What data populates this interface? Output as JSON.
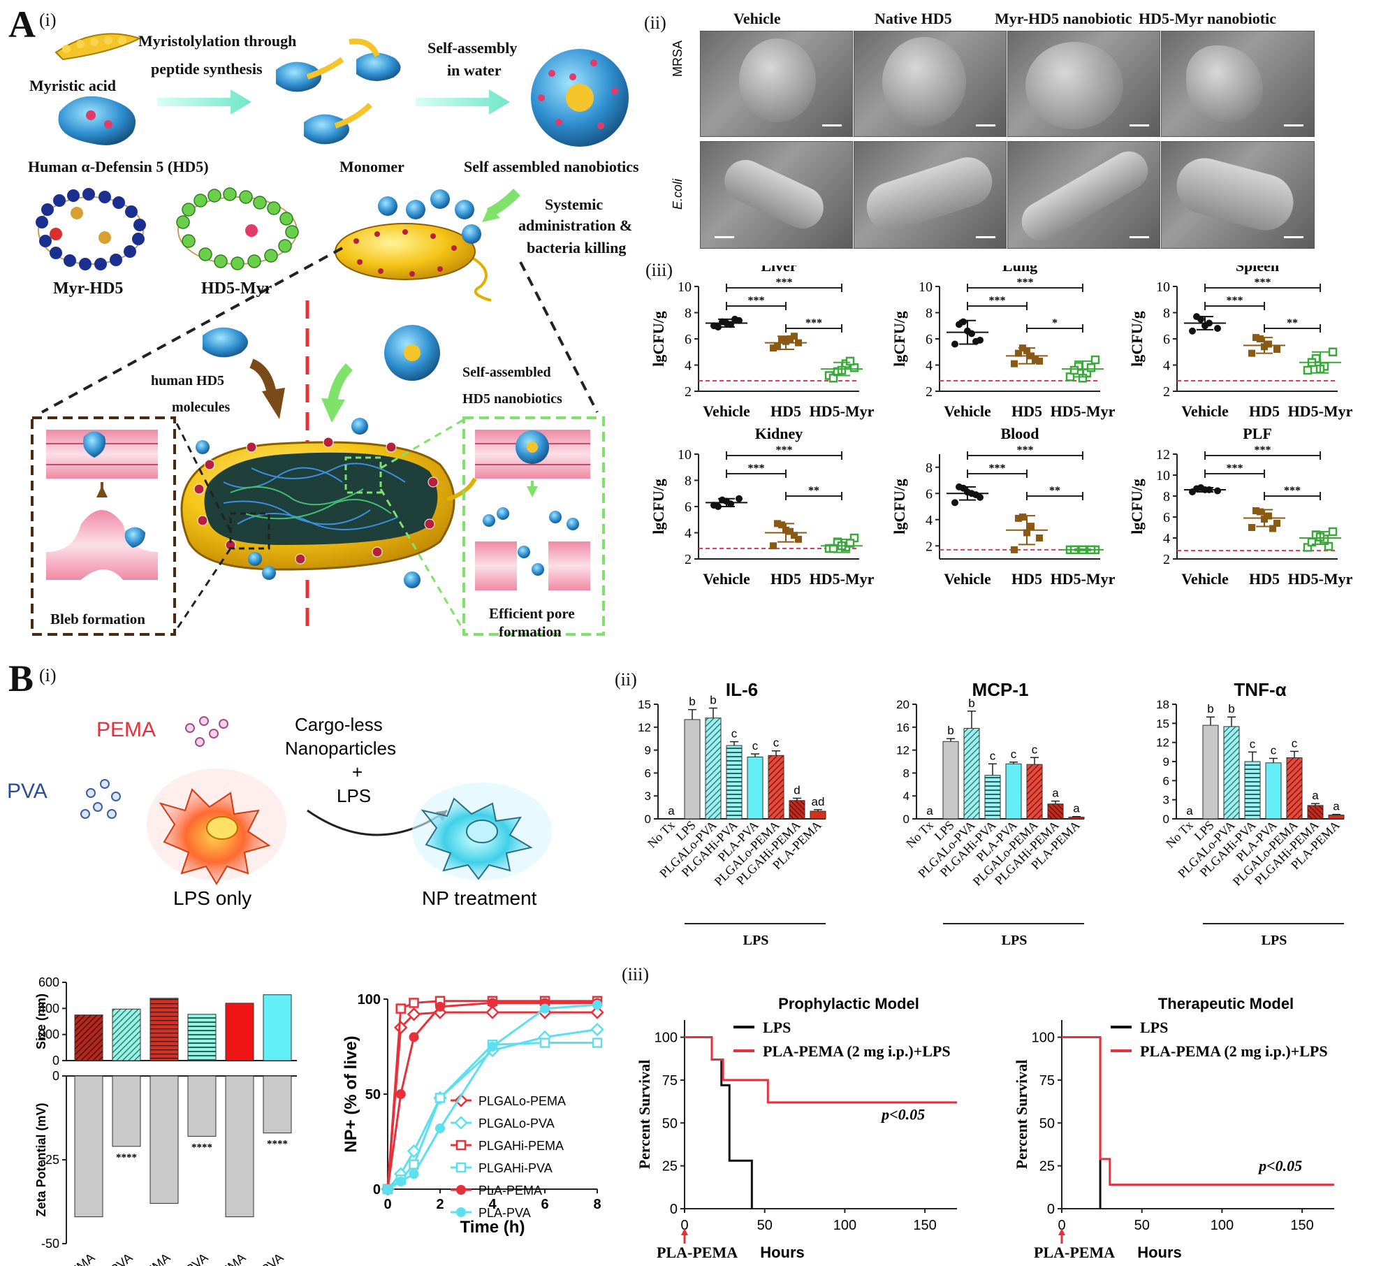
{
  "panelA": {
    "label": "A",
    "i": {
      "sub": "(i)",
      "myristic": "Myristic acid",
      "synth1": "Myristolylation through",
      "synth2": "peptide synthesis",
      "selfasm1": "Self-assembly",
      "selfasm2": "in water",
      "hd5": "Human α-Defensin 5 (HD5)",
      "monomer": "Monomer",
      "nanobiotics": "Self assembled nanobiotics",
      "systemic1": "Systemic",
      "systemic2": "administration &",
      "systemic3": "bacteria killing",
      "myrhd5": "Myr-HD5",
      "hd5myr": "HD5-Myr",
      "humanhd5_1": "human HD5",
      "humanhd5_2": "molecules",
      "selfassembled1": "Self-assembled",
      "selfassembled2": "HD5 nanobiotics",
      "bleb": "Bleb formation",
      "pore1": "Efficient pore",
      "pore2": "formation"
    },
    "ii": {
      "sub": "(ii)",
      "cols": [
        "Vehicle",
        "Native HD5",
        "Myr-HD5 nanobiotic",
        "HD5-Myr nanobiotic"
      ],
      "rows": [
        "MRSA",
        "E.coli"
      ]
    },
    "iii": {
      "sub": "(iii)",
      "ylabel": "lgCFU/g",
      "categories": [
        "Vehicle",
        "HD5",
        "HD5-Myr"
      ]
    }
  },
  "panelB": {
    "label": "B",
    "i": {
      "sub": "(i)",
      "pema": "PEMA",
      "pva": "PVA",
      "arrow1": "Cargo-less",
      "arrow2": "Nanoparticles",
      "arrow3": "+",
      "arrow4": "LPS",
      "lpsonly": "LPS only",
      "nptreat": "NP treatment"
    },
    "ii": {
      "sub": "(ii)",
      "lps": "LPS"
    },
    "iii": {
      "sub": "(iii)"
    }
  },
  "chart_data": [
    {
      "id": "liver",
      "type": "scatter",
      "title": "Liver",
      "ylabel": "lgCFU/g",
      "categories": [
        "Vehicle",
        "HD5",
        "HD5-Myr"
      ],
      "ylim": [
        2,
        10
      ],
      "yticks": [
        2,
        4,
        6,
        8,
        10
      ],
      "means": [
        7.2,
        5.7,
        3.7
      ],
      "sd": [
        0.3,
        0.5,
        0.5
      ],
      "points": [
        [
          7.0,
          7.3,
          7.1,
          7.4,
          6.9,
          7.2,
          7.5
        ],
        [
          5.3,
          5.9,
          6.0,
          5.7,
          5.4,
          5.8,
          6.2
        ],
        [
          3.2,
          3.5,
          4.1,
          3.8,
          3.0,
          3.6,
          4.3
        ]
      ],
      "threshold": 2.8,
      "sig": [
        {
          "a": 0,
          "b": 1,
          "t": "***"
        },
        {
          "a": 1,
          "b": 2,
          "t": "***"
        },
        {
          "a": 0,
          "b": 2,
          "t": "***"
        }
      ],
      "colors": [
        "#111111",
        "#8a5a14",
        "#3aa83a"
      ],
      "markers": [
        "circle",
        "square",
        "square-open"
      ]
    },
    {
      "id": "lung",
      "type": "scatter",
      "title": "Lung",
      "ylabel": "lgCFU/g",
      "categories": [
        "Vehicle",
        "HD5",
        "HD5-Myr"
      ],
      "ylim": [
        2,
        10
      ],
      "yticks": [
        2,
        4,
        6,
        8,
        10
      ],
      "means": [
        6.5,
        4.7,
        3.7
      ],
      "sd": [
        0.9,
        0.6,
        0.6
      ],
      "points": [
        [
          5.6,
          7.3,
          6.4,
          5.9,
          7.1,
          6.6,
          5.8
        ],
        [
          4.1,
          5.3,
          4.7,
          4.3,
          4.9,
          5.1,
          4.4
        ],
        [
          3.1,
          3.9,
          3.4,
          4.4,
          3.6,
          3.0,
          3.8
        ]
      ],
      "threshold": 2.8,
      "sig": [
        {
          "a": 0,
          "b": 1,
          "t": "***"
        },
        {
          "a": 1,
          "b": 2,
          "t": "*"
        },
        {
          "a": 0,
          "b": 2,
          "t": "***"
        }
      ],
      "colors": [
        "#111111",
        "#8a5a14",
        "#3aa83a"
      ],
      "markers": [
        "circle",
        "square",
        "square-open"
      ]
    },
    {
      "id": "spleen",
      "type": "scatter",
      "title": "Spleen",
      "ylabel": "lgCFU/g",
      "categories": [
        "Vehicle",
        "HD5",
        "HD5-Myr"
      ],
      "ylim": [
        2,
        10
      ],
      "yticks": [
        2,
        4,
        6,
        8,
        10
      ],
      "means": [
        7.2,
        5.5,
        4.2
      ],
      "sd": [
        0.5,
        0.6,
        0.8
      ],
      "points": [
        [
          6.6,
          7.5,
          7.2,
          6.8,
          7.7,
          7.0
        ],
        [
          4.9,
          6.0,
          5.6,
          5.2,
          6.1,
          5.4
        ],
        [
          3.6,
          4.5,
          3.9,
          5.0,
          4.2,
          3.7
        ]
      ],
      "threshold": 2.8,
      "sig": [
        {
          "a": 0,
          "b": 1,
          "t": "***"
        },
        {
          "a": 1,
          "b": 2,
          "t": "**"
        },
        {
          "a": 0,
          "b": 2,
          "t": "***"
        }
      ],
      "colors": [
        "#111111",
        "#8a5a14",
        "#3aa83a"
      ],
      "markers": [
        "circle",
        "square",
        "square-open"
      ]
    },
    {
      "id": "kidney",
      "type": "scatter",
      "title": "Kidney",
      "ylabel": "lgCFU/g",
      "categories": [
        "Vehicle",
        "HD5",
        "HD5-Myr"
      ],
      "ylim": [
        2,
        10
      ],
      "yticks": [
        2,
        4,
        6,
        8,
        10
      ],
      "means": [
        6.3,
        4.0,
        3.0
      ],
      "sd": [
        0.3,
        0.7,
        0.5
      ],
      "points": [
        [
          6.1,
          6.5,
          6.2,
          6.6,
          6.0,
          6.4
        ],
        [
          3.0,
          4.6,
          4.1,
          3.5,
          4.7,
          4.2,
          3.8
        ],
        [
          2.8,
          3.3,
          2.9,
          3.6,
          2.8,
          3.0,
          3.2
        ]
      ],
      "threshold": 2.8,
      "sig": [
        {
          "a": 0,
          "b": 1,
          "t": "***"
        },
        {
          "a": 1,
          "b": 2,
          "t": "**"
        },
        {
          "a": 0,
          "b": 2,
          "t": "***"
        }
      ],
      "colors": [
        "#111111",
        "#8a5a14",
        "#3aa83a"
      ],
      "markers": [
        "circle",
        "square",
        "square-open"
      ]
    },
    {
      "id": "blood",
      "type": "scatter",
      "title": "Blood",
      "ylabel": "lgCFU/g",
      "categories": [
        "Vehicle",
        "HD5",
        "HD5-Myr"
      ],
      "ylim": [
        1,
        9
      ],
      "yticks": [
        2,
        4,
        6,
        8
      ],
      "means": [
        6.0,
        3.2,
        1.7
      ],
      "sd": [
        0.5,
        1.1,
        0.05
      ],
      "points": [
        [
          5.3,
          6.4,
          6.0,
          5.7,
          6.5,
          6.1,
          5.9
        ],
        [
          1.7,
          4.2,
          3.5,
          2.6,
          4.1,
          3.0
        ],
        [
          1.7,
          1.7,
          1.7,
          1.7,
          1.7,
          1.7,
          1.7
        ]
      ],
      "threshold": 1.7,
      "sig": [
        {
          "a": 0,
          "b": 1,
          "t": "***"
        },
        {
          "a": 1,
          "b": 2,
          "t": "**"
        },
        {
          "a": 0,
          "b": 2,
          "t": "***"
        }
      ],
      "colors": [
        "#111111",
        "#8a5a14",
        "#3aa83a"
      ],
      "markers": [
        "circle",
        "square",
        "square-open"
      ]
    },
    {
      "id": "plf",
      "type": "scatter",
      "title": "PLF",
      "ylabel": "lgCFU/g",
      "categories": [
        "Vehicle",
        "HD5",
        "HD5-Myr"
      ],
      "ylim": [
        2,
        12
      ],
      "yticks": [
        2,
        4,
        6,
        8,
        10,
        12
      ],
      "means": [
        8.6,
        5.9,
        4.0
      ],
      "sd": [
        0.2,
        0.8,
        0.6
      ],
      "points": [
        [
          8.4,
          8.8,
          8.6,
          8.5,
          8.7,
          8.6
        ],
        [
          5.0,
          6.5,
          6.1,
          5.4,
          6.6,
          5.8,
          4.9
        ],
        [
          3.1,
          4.3,
          3.9,
          4.6,
          3.6,
          4.1,
          3.2
        ]
      ],
      "threshold": 2.8,
      "sig": [
        {
          "a": 0,
          "b": 1,
          "t": "***"
        },
        {
          "a": 1,
          "b": 2,
          "t": "***"
        },
        {
          "a": 0,
          "b": 2,
          "t": "***"
        }
      ],
      "colors": [
        "#111111",
        "#8a5a14",
        "#3aa83a"
      ],
      "markers": [
        "circle",
        "square",
        "square-open"
      ]
    },
    {
      "id": "il6",
      "type": "bar",
      "title": "IL-6",
      "categories": [
        "No Tx",
        "LPS",
        "PLGALo-PVA",
        "PLGAHi-PVA",
        "PLA-PVA",
        "PLGALo-PEMA",
        "PLGAHi-PEMA",
        "PLA-PEMA"
      ],
      "values": [
        0,
        13.0,
        13.2,
        9.6,
        8.1,
        8.3,
        2.4,
        1.0
      ],
      "err": [
        0,
        1.3,
        1.3,
        0.5,
        0.4,
        0.6,
        0.3,
        0.2
      ],
      "letters": [
        "a",
        "b",
        "b",
        "c",
        "c",
        "c",
        "d",
        "ad"
      ],
      "ylim": [
        0,
        15
      ],
      "yticks": [
        0,
        3,
        6,
        9,
        12,
        15
      ]
    },
    {
      "id": "mcp1",
      "type": "bar",
      "title": "MCP-1",
      "categories": [
        "No Tx",
        "LPS",
        "PLGALo-PVA",
        "PLGAHi-PVA",
        "PLA-PVA",
        "PLGALo-PEMA",
        "PLGAHi-PEMA",
        "PLA-PEMA"
      ],
      "values": [
        0,
        13.5,
        15.8,
        7.6,
        9.6,
        9.5,
        2.6,
        0.3
      ],
      "err": [
        0,
        0.5,
        3.0,
        2.0,
        0.3,
        1.2,
        0.5,
        0.1
      ],
      "letters": [
        "a",
        "b",
        "b",
        "c",
        "c",
        "c",
        "a",
        "a"
      ],
      "ylim": [
        0,
        20
      ],
      "yticks": [
        0,
        4,
        8,
        12,
        16,
        20
      ]
    },
    {
      "id": "tnfa",
      "type": "bar",
      "title": "TNF-α",
      "categories": [
        "No Tx",
        "LPS",
        "PLGALo-PVA",
        "PLGAHi-PVA",
        "PLA-PVA",
        "PLGALo-PEMA",
        "PLGAHi-PEMA",
        "PLA-PEMA"
      ],
      "values": [
        0,
        14.7,
        14.5,
        9.0,
        8.8,
        9.6,
        2.1,
        0.6
      ],
      "err": [
        0,
        1.3,
        1.5,
        1.5,
        0.7,
        1.0,
        0.3,
        0.1
      ],
      "letters": [
        "a",
        "b",
        "b",
        "c",
        "c",
        "c",
        "a",
        "a"
      ],
      "ylim": [
        0,
        18
      ],
      "yticks": [
        0,
        3,
        6,
        9,
        12,
        15,
        18
      ]
    },
    {
      "id": "sizezeta",
      "type": "bar",
      "categories": [
        "PLGALo-PEMA",
        "PLGALo-PVA",
        "PLGAHi-PEMA",
        "PLGAHi-PVA",
        "PLA-PEMA",
        "PLA-PVA"
      ],
      "size": [
        350,
        395,
        478,
        355,
        440,
        505
      ],
      "zeta": [
        -42,
        -21,
        -38,
        -18,
        -42,
        -17
      ],
      "size_label": "Size (nm)",
      "zeta_label": "Zeta Potential (mV)",
      "size_ticks": [
        0,
        200,
        400,
        600
      ],
      "zeta_ticks": [
        -50,
        -25,
        0
      ],
      "stars": [
        "",
        "****",
        "",
        "****",
        "",
        "****"
      ]
    },
    {
      "id": "uptake",
      "type": "line",
      "xlabel": "Time (h)",
      "ylabel": "NP+ (% of live)",
      "xlim": [
        0,
        8
      ],
      "ylim": [
        0,
        100
      ],
      "xticks": [
        0,
        2,
        4,
        6,
        8
      ],
      "yticks": [
        0,
        50,
        100
      ],
      "series": [
        {
          "name": "PLGALo-PEMA",
          "color": "#e8303a",
          "marker": "diamond-open",
          "x": [
            0,
            0.5,
            1,
            2,
            4,
            6,
            8
          ],
          "y": [
            0,
            85,
            92,
            93,
            93,
            93,
            93
          ]
        },
        {
          "name": "PLGALo-PVA",
          "color": "#5ce0f0",
          "marker": "diamond-open",
          "x": [
            0,
            0.5,
            1,
            2,
            4,
            6,
            8
          ],
          "y": [
            0,
            8,
            20,
            48,
            73,
            80,
            84
          ]
        },
        {
          "name": "PLGAHi-PEMA",
          "color": "#e8303a",
          "marker": "square-open",
          "x": [
            0,
            0.5,
            1,
            2,
            4,
            6,
            8
          ],
          "y": [
            0,
            95,
            98,
            99,
            99,
            99,
            99
          ]
        },
        {
          "name": "PLGAHi-PVA",
          "color": "#5ce0f0",
          "marker": "square-open",
          "x": [
            0,
            0.5,
            1,
            2,
            4,
            6,
            8
          ],
          "y": [
            0,
            5,
            13,
            48,
            76,
            77,
            77
          ]
        },
        {
          "name": "PLA-PEMA",
          "color": "#e8303a",
          "marker": "circle",
          "x": [
            0,
            0.5,
            1,
            2,
            4,
            6,
            8
          ],
          "y": [
            0,
            50,
            80,
            96,
            98,
            98,
            98
          ]
        },
        {
          "name": "PLA-PVA",
          "color": "#5ce0f0",
          "marker": "circle",
          "x": [
            0,
            0.5,
            1,
            2,
            4,
            6,
            8
          ],
          "y": [
            0,
            4,
            8,
            32,
            75,
            95,
            97
          ]
        }
      ]
    },
    {
      "id": "prophylactic",
      "type": "line",
      "title": "Prophylactic Model",
      "xlabel": "Hours",
      "ylabel": "Percent Survival",
      "xlim": [
        0,
        170
      ],
      "ylim": [
        0,
        110
      ],
      "xticks": [
        0,
        50,
        100,
        150
      ],
      "yticks": [
        0,
        25,
        50,
        75,
        100
      ],
      "pvalue": "p<0.05",
      "marker_label": "PLA-PEMA",
      "series": [
        {
          "name": "LPS",
          "color": "#111111",
          "step": [
            [
              0,
              100
            ],
            [
              17,
              100
            ],
            [
              17,
              87
            ],
            [
              23,
              87
            ],
            [
              23,
              72
            ],
            [
              28,
              72
            ],
            [
              28,
              28
            ],
            [
              42,
              28
            ],
            [
              42,
              0
            ]
          ]
        },
        {
          "name": "PLA-PEMA (2 mg i.p.)+LPS",
          "color": "#e8303a",
          "step": [
            [
              0,
              100
            ],
            [
              17,
              100
            ],
            [
              17,
              87
            ],
            [
              24,
              87
            ],
            [
              24,
              75
            ],
            [
              52,
              75
            ],
            [
              52,
              62
            ],
            [
              170,
              62
            ]
          ]
        }
      ]
    },
    {
      "id": "therapeutic",
      "type": "line",
      "title": "Therapeutic Model",
      "xlabel": "Hours",
      "ylabel": "Percent Survival",
      "xlim": [
        0,
        170
      ],
      "ylim": [
        0,
        110
      ],
      "xticks": [
        0,
        50,
        100,
        150
      ],
      "yticks": [
        0,
        25,
        50,
        75,
        100
      ],
      "pvalue": "p<0.05",
      "marker_label": "PLA-PEMA",
      "series": [
        {
          "name": "LPS",
          "color": "#111111",
          "step": [
            [
              0,
              100
            ],
            [
              24,
              100
            ],
            [
              24,
              0
            ]
          ]
        },
        {
          "name": "PLA-PEMA (2 mg i.p.)+LPS",
          "color": "#e8303a",
          "step": [
            [
              0,
              100
            ],
            [
              24,
              100
            ],
            [
              24,
              29
            ],
            [
              30,
              29
            ],
            [
              30,
              14
            ],
            [
              170,
              14
            ]
          ]
        }
      ]
    }
  ]
}
